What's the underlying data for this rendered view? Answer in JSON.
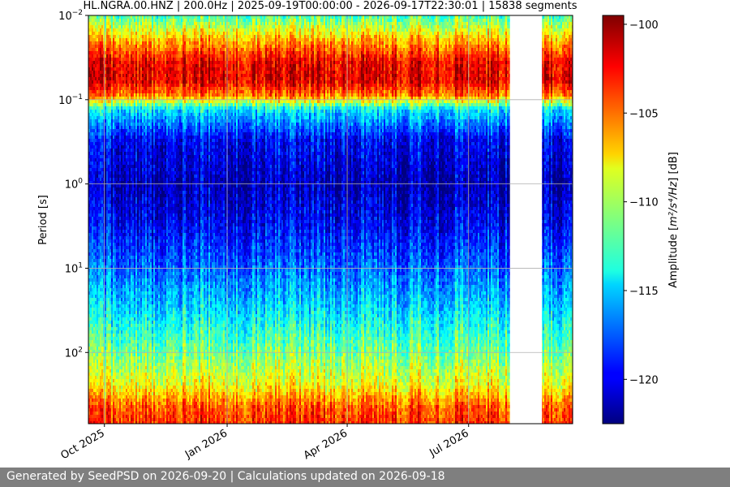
{
  "chart_data": {
    "type": "heatmap",
    "title": "HL.NGRA.00.HNZ | 200.0Hz | 2025-09-19T00:00:00 - 2026-09-17T22:30:01 | 15838 segments",
    "ylabel": "Period [s]",
    "xlabel": "",
    "x_range": [
      "2025-09-19",
      "2026-09-17"
    ],
    "x_ticks": [
      {
        "label": "Oct 2025",
        "date": "2025-10-01"
      },
      {
        "label": "Jan 2026",
        "date": "2026-01-01"
      },
      {
        "label": "Apr 2026",
        "date": "2026-04-01"
      },
      {
        "label": "Jul 2026",
        "date": "2026-07-01"
      }
    ],
    "y_scale": "log",
    "y_inverted": true,
    "y_range": [
      0.01,
      700
    ],
    "y_ticks": [
      {
        "base": "10",
        "exp": "−2",
        "value": 0.01
      },
      {
        "base": "10",
        "exp": "−1",
        "value": 0.1
      },
      {
        "base": "10",
        "exp": "0",
        "value": 1
      },
      {
        "base": "10",
        "exp": "1",
        "value": 10
      },
      {
        "base": "10",
        "exp": "2",
        "value": 100
      }
    ],
    "grid": true,
    "data_gap": [
      "2026-08-01",
      "2026-08-25"
    ],
    "colormap": "jet",
    "colorbar": {
      "label_prefix": "Amplitude [",
      "label_units": "m²/s⁴/Hz",
      "label_suffix": "] [dB]",
      "range": [
        -122.5,
        -99.5
      ],
      "ticks": [
        "−100",
        "−105",
        "−110",
        "−115",
        "−120"
      ],
      "tick_values": [
        -100,
        -105,
        -110,
        -115,
        -120
      ]
    },
    "band_profile": [
      {
        "period": 0.01,
        "db": -112.0
      },
      {
        "period": 0.02,
        "db": -106.0
      },
      {
        "period": 0.035,
        "db": -102.0
      },
      {
        "period": 0.06,
        "db": -101.5
      },
      {
        "period": 0.09,
        "db": -105.0
      },
      {
        "period": 0.13,
        "db": -114.0
      },
      {
        "period": 0.3,
        "db": -119.5
      },
      {
        "period": 1.0,
        "db": -121.0
      },
      {
        "period": 3.0,
        "db": -119.5
      },
      {
        "period": 10.0,
        "db": -117.0
      },
      {
        "period": 30.0,
        "db": -114.5
      },
      {
        "period": 100.0,
        "db": -111.0
      },
      {
        "period": 250.0,
        "db": -108.0
      },
      {
        "period": 450.0,
        "db": -104.0
      },
      {
        "period": 700.0,
        "db": -103.0
      }
    ]
  },
  "footer": {
    "text": "Generated by SeedPSD on 2026-09-20 | Calculations updated on 2026-09-18"
  }
}
